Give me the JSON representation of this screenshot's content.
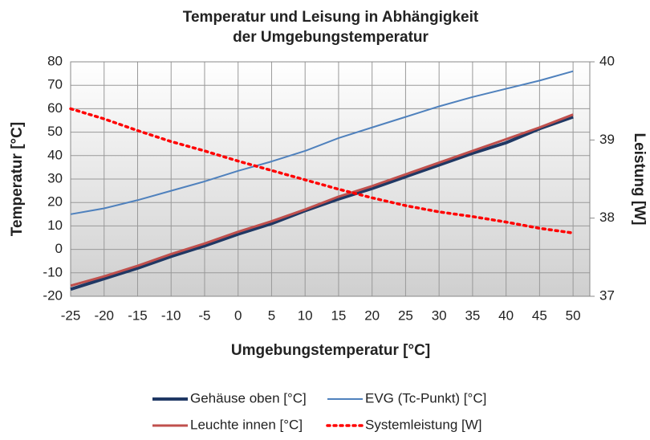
{
  "chart_data": {
    "type": "line",
    "title": [
      "Temperatur und Leisung in Abhängigkeit",
      "der Umgebungstemperatur"
    ],
    "xlabel": "Umgebungstemperatur [°C]",
    "ylabel": "Temperatur [°C]",
    "y2label": "Leistung [W]",
    "x": [
      -25,
      -20,
      -15,
      -10,
      -5,
      0,
      5,
      10,
      15,
      20,
      25,
      30,
      35,
      40,
      45,
      50
    ],
    "xlim": [
      -25,
      52.5
    ],
    "xticks": [
      -25,
      -20,
      -15,
      -10,
      -5,
      0,
      5,
      10,
      15,
      20,
      25,
      30,
      35,
      40,
      45,
      50
    ],
    "ylim": [
      -20,
      80
    ],
    "yticks": [
      -20,
      -10,
      0,
      10,
      20,
      30,
      40,
      50,
      60,
      70,
      80
    ],
    "y2lim": [
      37,
      40
    ],
    "y2ticks": [
      37,
      38,
      39,
      40
    ],
    "grid": true,
    "legend": "bottom",
    "series": [
      {
        "name": "Gehäuse oben [°C]",
        "color": "#1f3864",
        "width": 4,
        "dash": "solid",
        "values": [
          -17,
          -12.5,
          -8,
          -3,
          1.5,
          6.5,
          11,
          16.5,
          21.5,
          26,
          31,
          36,
          41,
          45.5,
          51.5,
          56.5
        ]
      },
      {
        "name": "EVG (Tc-Punkt) [°C]",
        "color": "#4f81bd",
        "width": 2,
        "dash": "solid",
        "values": [
          15,
          17.5,
          21,
          25,
          29,
          33.5,
          37.5,
          42,
          47.5,
          52,
          56.5,
          61,
          65,
          68.5,
          72,
          76
        ]
      },
      {
        "name": "Leuchte innen [°C]",
        "color": "#c0504d",
        "width": 3,
        "dash": "solid",
        "values": [
          -15.5,
          -11.5,
          -7,
          -2,
          2.5,
          7.5,
          12,
          17,
          22.5,
          27,
          32,
          37,
          42,
          47,
          52,
          57.5
        ]
      },
      {
        "name": "Systemleistung [W]",
        "color": "#ff0000",
        "width": 3.5,
        "dash": "dotted",
        "axis": "y2",
        "values": [
          39.4,
          39.27,
          39.12,
          38.98,
          38.86,
          38.73,
          38.61,
          38.49,
          38.37,
          38.26,
          38.16,
          38.08,
          38.02,
          37.95,
          37.87,
          37.81
        ]
      }
    ]
  }
}
